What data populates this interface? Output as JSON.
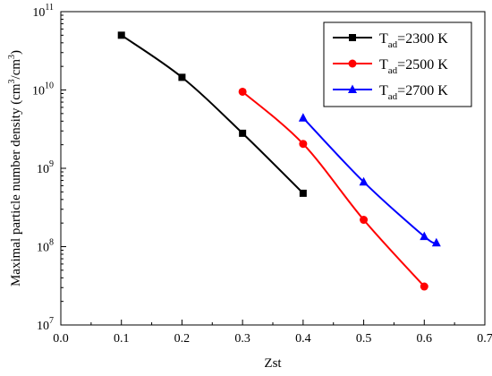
{
  "chart_data": {
    "type": "line",
    "title": "",
    "xlabel": "Zst",
    "ylabel_prefix": "Maximal particle number density (cm",
    "ylabel_sup1": "3",
    "ylabel_mid": "/cm",
    "ylabel_sup2": "3",
    "ylabel_suffix": ")",
    "xlim": [
      0.0,
      0.7
    ],
    "ylim": [
      10000000,
      100000000000
    ],
    "yscale": "log",
    "x_ticks": [
      {
        "value": 0.0,
        "label": "0.0"
      },
      {
        "value": 0.1,
        "label": "0.1"
      },
      {
        "value": 0.2,
        "label": "0.2"
      },
      {
        "value": 0.3,
        "label": "0.3"
      },
      {
        "value": 0.4,
        "label": "0.4"
      },
      {
        "value": 0.5,
        "label": "0.5"
      },
      {
        "value": 0.6,
        "label": "0.6"
      },
      {
        "value": 0.7,
        "label": "0.7"
      }
    ],
    "y_ticks": [
      {
        "exp": 7,
        "base": "10",
        "sup": "7"
      },
      {
        "exp": 8,
        "base": "10",
        "sup": "8"
      },
      {
        "exp": 9,
        "base": "10",
        "sup": "9"
      },
      {
        "exp": 10,
        "base": "10",
        "sup": "10"
      },
      {
        "exp": 11,
        "base": "10",
        "sup": "11"
      }
    ],
    "legend_position": "top-right",
    "series": [
      {
        "name_main": "T",
        "name_sub": "ad",
        "name_rest": "=2300 K",
        "color": "#000000",
        "marker": "square",
        "x": [
          0.1,
          0.2,
          0.3,
          0.4
        ],
        "y": [
          50000000000,
          14500000000,
          2800000000,
          480000000
        ]
      },
      {
        "name_main": "T",
        "name_sub": "ad",
        "name_rest": "=2500 K",
        "color": "#ff0000",
        "marker": "circle",
        "x": [
          0.3,
          0.4,
          0.5,
          0.6
        ],
        "y": [
          9500000000,
          2050000000,
          220000000,
          31000000
        ]
      },
      {
        "name_main": "T",
        "name_sub": "ad",
        "name_rest": "=2700 K",
        "color": "#0000ff",
        "marker": "triangle",
        "x": [
          0.4,
          0.5,
          0.6,
          0.62
        ],
        "y": [
          4400000000,
          670000000,
          135000000,
          112000000
        ]
      }
    ]
  }
}
